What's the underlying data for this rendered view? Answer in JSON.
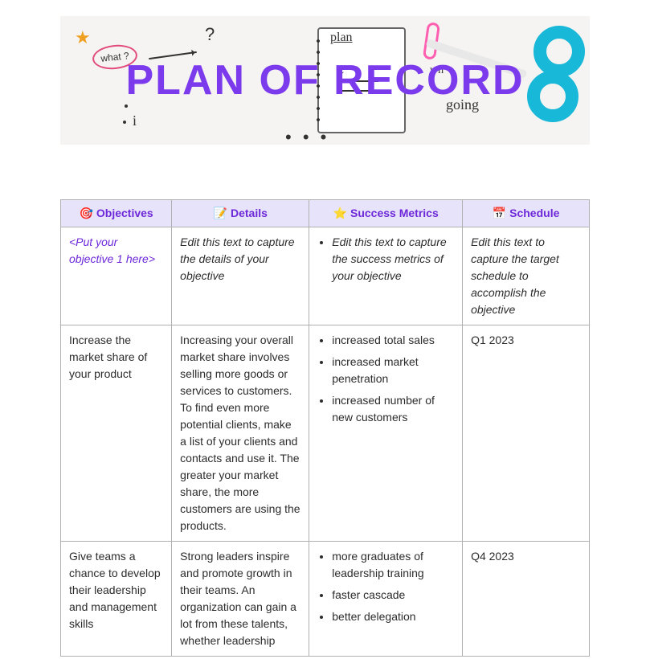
{
  "banner": {
    "title": "PLAN OF RECORD",
    "title_color": "#7c3aed",
    "background_color": "#f6f4f2",
    "doodles": {
      "what_label": "what ?",
      "plan_label": "plan",
      "going_label": "going",
      "wh_label": "wh"
    }
  },
  "table": {
    "header_bg": "#e7e3fb",
    "header_color": "#6d28d9",
    "border_color": "#b0b0b0",
    "columns": [
      {
        "icon": "🎯",
        "label": "Objectives"
      },
      {
        "icon": "📝",
        "label": "Details"
      },
      {
        "icon": "⭐",
        "label": "Success Metrics"
      },
      {
        "icon": "📅",
        "label": "Schedule"
      }
    ],
    "rows": [
      {
        "objective": "<Put your objective 1 here>",
        "objective_is_placeholder": true,
        "details": "Edit this text to capture the details of your objective",
        "details_is_placeholder": true,
        "metrics": [
          "Edit this text to capture the success metrics of your objective"
        ],
        "metrics_is_placeholder": true,
        "schedule": "Edit this text to capture the target schedule to accomplish the objective",
        "schedule_is_placeholder": true
      },
      {
        "objective": "Increase the market share of your product",
        "details": "Increasing your overall market share involves selling more goods or services to customers. To find even more potential clients, make a list of your clients and contacts and use it. The greater your market share, the more customers are using the products.",
        "metrics": [
          "increased total sales",
          "increased market penetration",
          "increased number of new customers"
        ],
        "schedule": "Q1 2023"
      },
      {
        "objective": "Give teams a chance to develop their leadership and management skills",
        "details": "Strong leaders inspire and promote growth in their teams. An organization can gain a lot from these talents, whether leadership",
        "metrics": [
          "more graduates of leadership training",
          "faster cascade",
          "better delegation"
        ],
        "schedule": "Q4 2023"
      }
    ]
  }
}
